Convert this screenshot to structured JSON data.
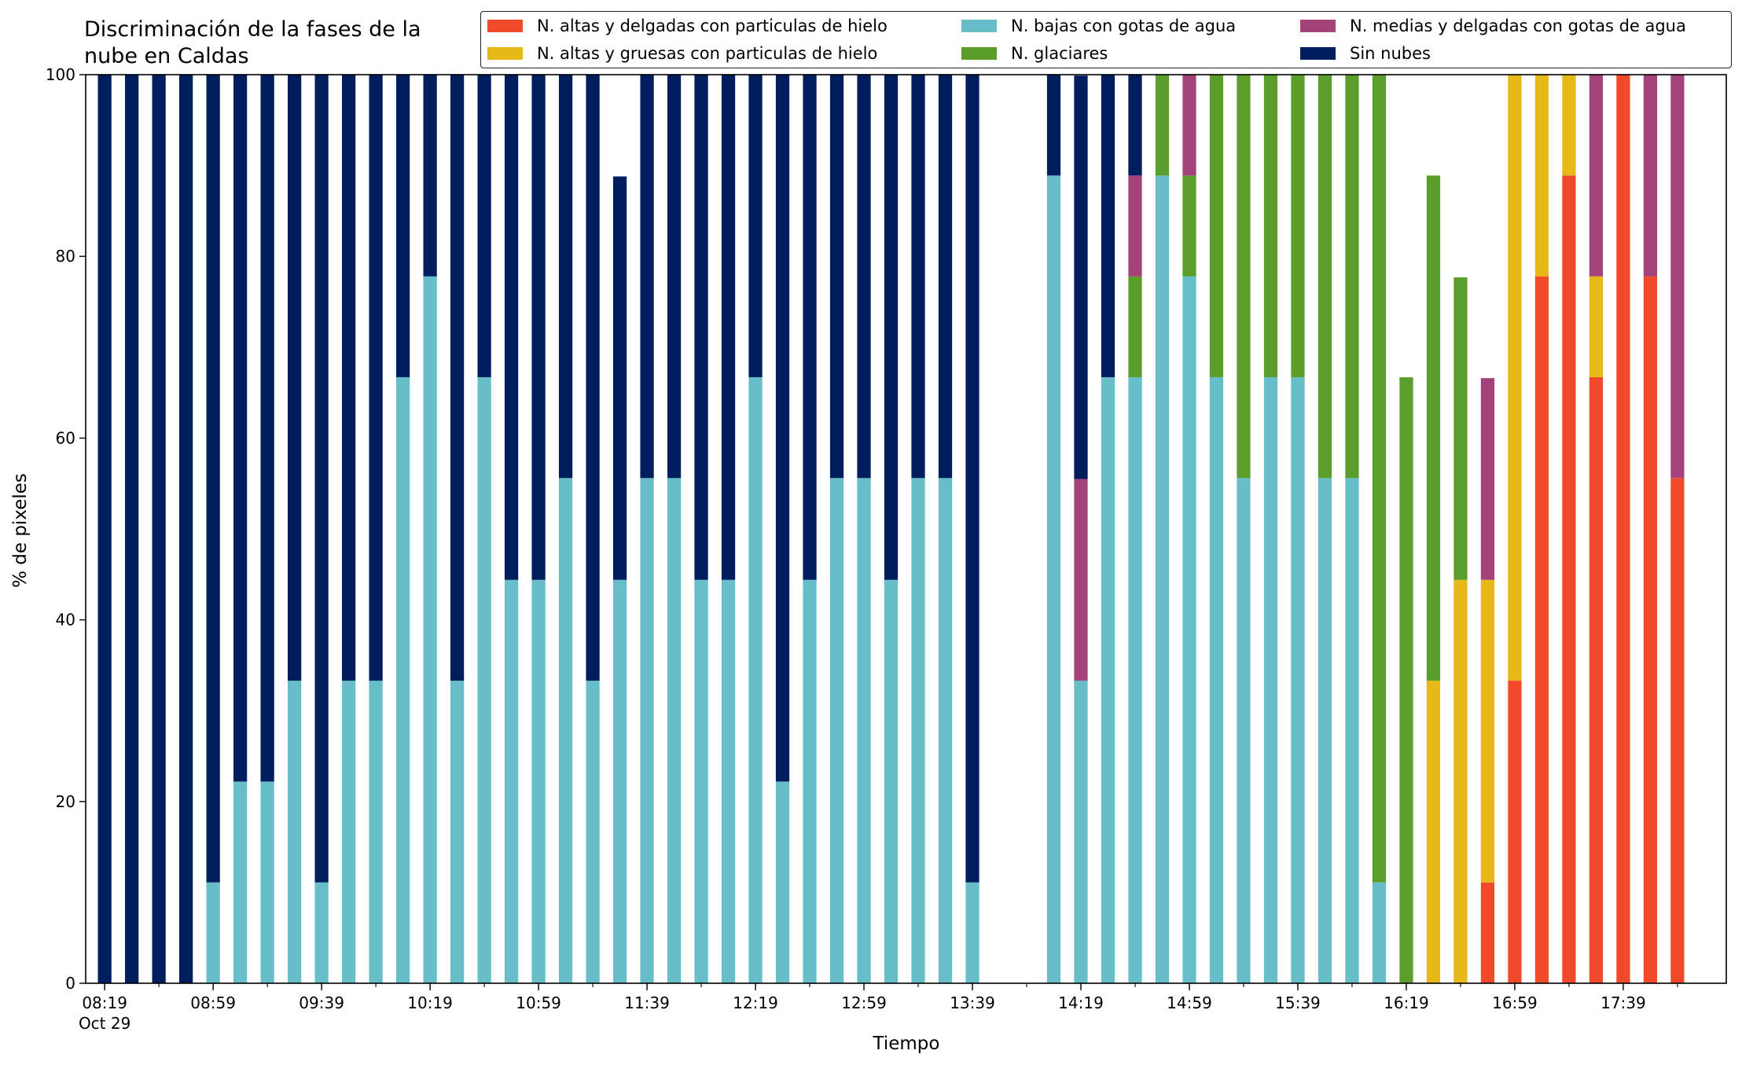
{
  "chart_data": {
    "type": "bar",
    "stacked": true,
    "title": [
      "Discriminación de la fases de la",
      "nube en Caldas"
    ],
    "xlabel": "Tiempo",
    "ylabel": "% de pixeles",
    "ylim": [
      0,
      100
    ],
    "yticks": [
      0,
      20,
      40,
      60,
      80,
      100
    ],
    "xlim_minutes_since_0819": [
      -7,
      598
    ],
    "bar_interval_minutes": 10,
    "xtick_labels": [
      "08:19\nOct 29",
      "08:59",
      "09:39",
      "10:19",
      "10:59",
      "11:39",
      "12:19",
      "12:59",
      "13:39",
      "14:19",
      "14:59",
      "15:39",
      "16:19",
      "16:59",
      "17:39"
    ],
    "legend_position": "top-right",
    "legend": [
      {
        "name": "N. altas y delgadas con particulas de hielo",
        "color": "#f04a2a"
      },
      {
        "name": "N. altas y gruesas con particulas de hielo",
        "color": "#e6b818"
      },
      {
        "name": "N. bajas con gotas de agua",
        "color": "#67bec8"
      },
      {
        "name": "N. glaciares",
        "color": "#5c9e2c"
      },
      {
        "name": "N. medias y delgadas con gotas de agua",
        "color": "#a4427a"
      },
      {
        "name": "Sin nubes",
        "color": "#001d5e"
      }
    ],
    "series": [
      {
        "name": "N. altas y delgadas con particulas de hielo",
        "color": "#f04a2a",
        "values": [
          0,
          0,
          0,
          0,
          0,
          0,
          0,
          0,
          0,
          0,
          0,
          0,
          0,
          0,
          0,
          0,
          0,
          0,
          0,
          0,
          0,
          0,
          0,
          0,
          0,
          0,
          0,
          0,
          0,
          0,
          0,
          0,
          0,
          0,
          0,
          0,
          0,
          0,
          0,
          0,
          0,
          0,
          0,
          0,
          0,
          0,
          0,
          0,
          0,
          0,
          0,
          11.1,
          33.3,
          77.8,
          88.9,
          66.7,
          100,
          77.8,
          55.6
        ]
      },
      {
        "name": "N. altas y gruesas con particulas de hielo",
        "color": "#e6b818",
        "values": [
          0,
          0,
          0,
          0,
          0,
          0,
          0,
          0,
          0,
          0,
          0,
          0,
          0,
          0,
          0,
          0,
          0,
          0,
          0,
          0,
          0,
          0,
          0,
          0,
          0,
          0,
          0,
          0,
          0,
          0,
          0,
          0,
          0,
          0,
          0,
          0,
          0,
          0,
          0,
          0,
          0,
          0,
          0,
          0,
          0,
          0,
          0,
          0,
          0,
          33.3,
          44.4,
          33.3,
          66.7,
          22.2,
          11.1,
          11.1,
          0,
          0,
          0
        ]
      },
      {
        "name": "N. bajas con gotas de agua",
        "color": "#67bec8",
        "values": [
          0,
          0,
          0,
          0,
          11.1,
          22.2,
          22.2,
          33.3,
          11.1,
          33.3,
          33.3,
          66.7,
          77.8,
          33.3,
          66.7,
          44.4,
          44.4,
          55.6,
          33.3,
          44.4,
          55.6,
          55.6,
          44.4,
          44.4,
          66.7,
          22.2,
          44.4,
          55.6,
          55.6,
          44.4,
          55.6,
          55.6,
          11.1,
          0,
          0,
          88.9,
          33.3,
          66.7,
          66.7,
          88.9,
          77.8,
          66.7,
          55.6,
          66.7,
          66.7,
          55.6,
          55.6,
          11.1,
          0,
          0,
          0,
          0,
          0,
          0,
          0,
          0,
          0,
          0,
          0
        ]
      },
      {
        "name": "N. glaciares",
        "color": "#5c9e2c",
        "values": [
          0,
          0,
          0,
          0,
          0,
          0,
          0,
          0,
          0,
          0,
          0,
          0,
          0,
          0,
          0,
          0,
          0,
          0,
          0,
          0,
          0,
          0,
          0,
          0,
          0,
          0,
          0,
          0,
          0,
          0,
          0,
          0,
          0,
          0,
          0,
          0,
          0,
          0,
          11.1,
          11.1,
          11.1,
          33.3,
          44.4,
          33.3,
          33.3,
          44.4,
          44.4,
          88.9,
          66.7,
          55.6,
          33.3,
          0,
          0,
          0,
          0,
          0,
          0,
          0,
          0
        ]
      },
      {
        "name": "N. medias y delgadas con gotas de agua",
        "color": "#a4427a",
        "values": [
          0,
          0,
          0,
          0,
          0,
          0,
          0,
          0,
          0,
          0,
          0,
          0,
          0,
          0,
          0,
          0,
          0,
          0,
          0,
          0,
          0,
          0,
          0,
          0,
          0,
          0,
          0,
          0,
          0,
          0,
          0,
          0,
          0,
          0,
          0,
          0,
          22.2,
          0,
          11.1,
          0,
          11.1,
          0,
          0,
          0,
          0,
          0,
          0,
          0,
          0,
          0,
          0,
          22.2,
          0,
          0,
          0,
          22.2,
          0,
          22.2,
          44.4
        ]
      },
      {
        "name": "Sin nubes",
        "color": "#001d5e",
        "values": [
          100,
          100,
          100,
          100,
          88.9,
          77.8,
          77.8,
          66.7,
          88.9,
          66.7,
          66.7,
          33.3,
          22.2,
          66.7,
          33.3,
          55.6,
          55.6,
          44.4,
          66.7,
          44.4,
          44.4,
          44.4,
          55.6,
          55.6,
          33.3,
          77.8,
          55.6,
          44.4,
          44.4,
          55.6,
          44.4,
          44.4,
          88.9,
          0,
          0,
          11.1,
          44.4,
          33.3,
          11.1,
          0,
          0,
          0,
          0,
          0,
          0,
          0,
          0,
          0,
          0,
          0,
          0,
          0,
          0,
          0,
          0,
          0,
          0,
          0,
          0
        ]
      }
    ]
  }
}
